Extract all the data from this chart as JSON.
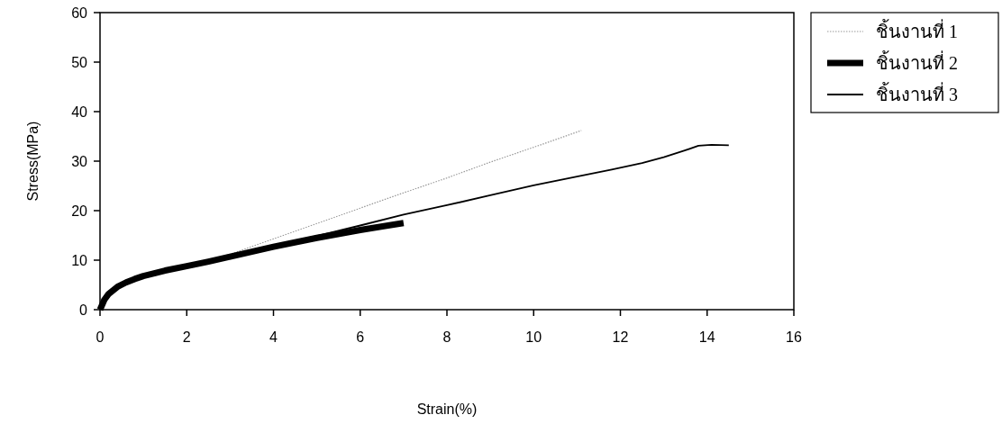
{
  "chart_data": {
    "type": "line",
    "xlabel": "Strain(%)",
    "ylabel": "Stress(MPa)",
    "xlim": [
      0,
      16
    ],
    "xticks": [
      0,
      2,
      4,
      6,
      8,
      10,
      12,
      14,
      16
    ],
    "ylim": [
      0,
      60
    ],
    "yticks": [
      0,
      10,
      20,
      30,
      40,
      50,
      60
    ],
    "grid": false,
    "legend": "right",
    "marker": "none",
    "series": [
      {
        "name": "ชิ้นงานที่ 1",
        "color": "#999999",
        "line_style": "dotted",
        "x": [
          0,
          0.1,
          0.2,
          0.4,
          0.6,
          0.8,
          1,
          1.5,
          2,
          2.5,
          3,
          4,
          5,
          6,
          7,
          8,
          9,
          10,
          11.1
        ],
        "values": [
          0,
          2,
          3.2,
          4.6,
          5.5,
          6.2,
          6.8,
          7.9,
          8.8,
          9.9,
          11.2,
          14.3,
          17.4,
          20.5,
          23.6,
          26.6,
          29.8,
          32.8,
          36.2
        ]
      },
      {
        "name": "ชิ้นงานที่ 2",
        "color": "#000000",
        "line_style": "solid",
        "x": [
          0,
          0.1,
          0.2,
          0.4,
          0.6,
          0.8,
          1,
          1.5,
          2,
          2.5,
          3,
          4,
          5,
          6,
          7
        ],
        "values": [
          0,
          2,
          3.2,
          4.6,
          5.5,
          6.2,
          6.8,
          7.9,
          8.8,
          9.7,
          10.7,
          12.7,
          14.5,
          16.1,
          17.5
        ]
      },
      {
        "name": "ชิ้นงานที่ 3",
        "color": "#000000",
        "line_style": "solid",
        "x": [
          0,
          0.1,
          0.2,
          0.4,
          0.6,
          0.8,
          1,
          1.5,
          2,
          2.5,
          3,
          4,
          5,
          6,
          7,
          8,
          9,
          10,
          11,
          11.8,
          12.5,
          13,
          13.5,
          13.8,
          14.1,
          14.5
        ],
        "values": [
          0,
          2,
          3.2,
          4.6,
          5.5,
          6.2,
          6.8,
          7.9,
          8.8,
          9.7,
          10.8,
          12.9,
          14.9,
          17.0,
          19.2,
          21.1,
          23.1,
          25.1,
          26.9,
          28.3,
          29.6,
          30.8,
          32.2,
          33.1,
          33.3,
          33.2
        ]
      }
    ]
  }
}
